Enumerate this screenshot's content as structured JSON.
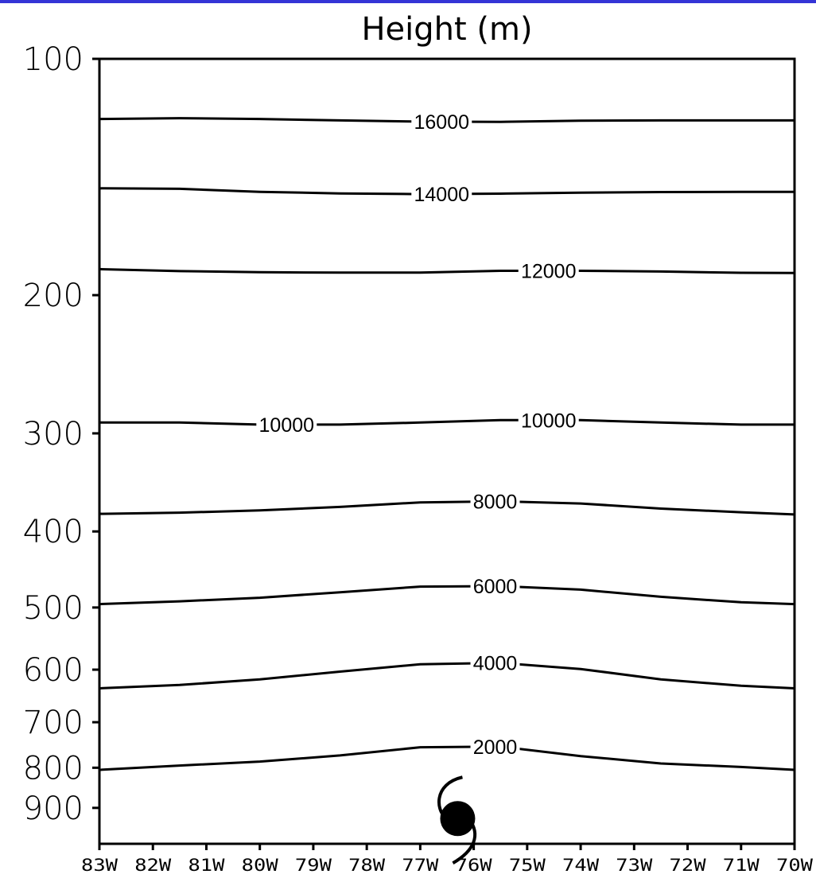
{
  "chart_data": {
    "type": "contour",
    "title": "Height (m)",
    "xlabel": "",
    "ylabel": "",
    "x_ticks": [
      "83W",
      "82W",
      "81W",
      "80W",
      "79W",
      "78W",
      "77W",
      "76W",
      "75W",
      "74W",
      "73W",
      "72W",
      "71W",
      "70W"
    ],
    "xlim": [
      -83,
      -70
    ],
    "y_ticks": [
      "100",
      "200",
      "300",
      "400",
      "500",
      "600",
      "700",
      "800",
      "900"
    ],
    "ylim": [
      1000,
      100
    ],
    "y_scale": "log",
    "contours": [
      {
        "value": 16000,
        "label": "16000",
        "label_x": -76.6,
        "points": [
          [
            -83,
            119.3
          ],
          [
            -81.5,
            119.0
          ],
          [
            -80,
            119.3
          ],
          [
            -78.5,
            119.8
          ],
          [
            -77.0,
            120.2
          ],
          [
            -75.5,
            120.3
          ],
          [
            -74,
            119.9
          ],
          [
            -72.5,
            119.8
          ],
          [
            -71,
            119.8
          ],
          [
            -70,
            119.8
          ]
        ]
      },
      {
        "value": 14000,
        "label": "14000",
        "label_x": -76.6,
        "points": [
          [
            -83,
            146.2
          ],
          [
            -81.5,
            146.4
          ],
          [
            -80,
            147.7
          ],
          [
            -78.5,
            148.4
          ],
          [
            -77.0,
            148.7
          ],
          [
            -75.5,
            148.5
          ],
          [
            -74,
            148.1
          ],
          [
            -72.5,
            147.8
          ],
          [
            -71,
            147.7
          ],
          [
            -70,
            147.7
          ]
        ]
      },
      {
        "value": 12000,
        "label": "12000",
        "label_x": -74.6,
        "points": [
          [
            -83,
            185.3
          ],
          [
            -81.5,
            186.4
          ],
          [
            -80,
            187.0
          ],
          [
            -78.5,
            187.2
          ],
          [
            -77.0,
            187.2
          ],
          [
            -75.5,
            186.2
          ],
          [
            -74,
            186.2
          ],
          [
            -72.5,
            186.6
          ],
          [
            -71,
            187.3
          ],
          [
            -70,
            187.4
          ]
        ]
      },
      {
        "value": 10000,
        "label": "10000",
        "label_x": -79.5,
        "label2": "10000",
        "label2_x": -74.6,
        "points": [
          [
            -83,
            290.6
          ],
          [
            -81.5,
            290.6
          ],
          [
            -80,
            292.4
          ],
          [
            -78.5,
            292.4
          ],
          [
            -77.0,
            290.6
          ],
          [
            -75.5,
            288.6
          ],
          [
            -74,
            288.6
          ],
          [
            -72.5,
            290.6
          ],
          [
            -71,
            292.4
          ],
          [
            -70,
            292.4
          ]
        ]
      },
      {
        "value": 8000,
        "label": "8000",
        "label_x": -75.6,
        "points": [
          [
            -83,
            379.9
          ],
          [
            -81.5,
            378.5
          ],
          [
            -80,
            376.1
          ],
          [
            -78.5,
            372.2
          ],
          [
            -77.0,
            367.3
          ],
          [
            -75.5,
            366.2
          ],
          [
            -74,
            368.5
          ],
          [
            -72.5,
            374.1
          ],
          [
            -71,
            378.1
          ],
          [
            -70,
            380.6
          ]
        ]
      },
      {
        "value": 6000,
        "label": "6000",
        "label_x": -75.6,
        "points": [
          [
            -83,
            495.0
          ],
          [
            -81.5,
            491.0
          ],
          [
            -80,
            485.9
          ],
          [
            -78.5,
            478.1
          ],
          [
            -77.0,
            470.3
          ],
          [
            -75.5,
            469.6
          ],
          [
            -74,
            474.4
          ],
          [
            -72.5,
            484.5
          ],
          [
            -71,
            492.4
          ],
          [
            -70,
            495.0
          ]
        ]
      },
      {
        "value": 4000,
        "label": "4000",
        "label_x": -75.6,
        "points": [
          [
            -83,
            633.8
          ],
          [
            -81.5,
            627.6
          ],
          [
            -80,
            617.2
          ],
          [
            -78.5,
            603.5
          ],
          [
            -77.0,
            590.5
          ],
          [
            -75.5,
            588.2
          ],
          [
            -74,
            598.9
          ],
          [
            -72.5,
            617.2
          ],
          [
            -71,
            629.1
          ],
          [
            -70,
            633.8
          ]
        ]
      },
      {
        "value": 2000,
        "label": "2000",
        "label_x": -75.6,
        "points": [
          [
            -83,
            804.9
          ],
          [
            -81.5,
            794.9
          ],
          [
            -80,
            785.6
          ],
          [
            -78.5,
            771.6
          ],
          [
            -77.0,
            753.4
          ],
          [
            -75.5,
            751.9
          ],
          [
            -74,
            773.2
          ],
          [
            -72.5,
            790.0
          ],
          [
            -71,
            798.2
          ],
          [
            -70,
            804.9
          ]
        ]
      }
    ],
    "marker": {
      "icon": "hurricane-symbol-icon",
      "x": -76.3,
      "y": 920,
      "color": "#000000"
    },
    "grid": false,
    "legend": "none"
  },
  "colors": {
    "top_bar": "#3434d6",
    "line": "#000000",
    "background": "#ffffff"
  }
}
